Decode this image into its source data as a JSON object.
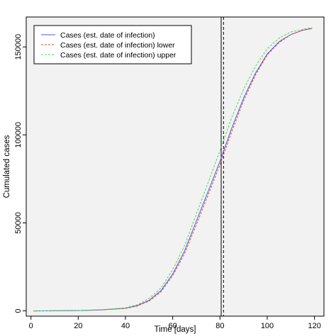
{
  "chart_data": {
    "type": "line",
    "xlabel": "Time [days]",
    "ylabel": "Cumulated cases",
    "xlim": [
      -2,
      124
    ],
    "ylim": [
      -3000,
      167000
    ],
    "x_ticks": [
      0,
      20,
      40,
      60,
      80,
      100,
      120
    ],
    "y_ticks": [
      0,
      50000,
      100000,
      150000
    ],
    "background_color": "#f2f2f2",
    "grid": false,
    "legend_position": "top-left",
    "vertical_lines": [
      {
        "x": 80.5,
        "style": "solid",
        "color": "#000000"
      },
      {
        "x": 81.5,
        "style": "dashed",
        "color": "#000000"
      }
    ],
    "x": [
      1,
      10,
      20,
      30,
      40,
      45,
      50,
      55,
      60,
      65,
      70,
      75,
      80,
      85,
      90,
      95,
      100,
      105,
      110,
      115,
      119
    ],
    "series": [
      {
        "name": "Cases (est. date of infection)",
        "color": "#5555dd",
        "style": "solid",
        "values": [
          0,
          50,
          200,
          600,
          1500,
          3000,
          6000,
          11500,
          21000,
          34000,
          51000,
          68000,
          85000,
          104000,
          121000,
          135000,
          146000,
          153000,
          157000,
          159500,
          160500
        ]
      },
      {
        "name": "Cases (est. date of infection) lower",
        "color": "#dd4444",
        "style": "dashed",
        "values": [
          0,
          50,
          200,
          550,
          1400,
          2800,
          5600,
          10800,
          20000,
          32500,
          49000,
          66000,
          83000,
          102000,
          119500,
          134000,
          145500,
          152500,
          157000,
          159500,
          160500
        ]
      },
      {
        "name": "Cases (est. date of infection) upper",
        "color": "#44dd44",
        "style": "dashed",
        "values": [
          0,
          60,
          220,
          700,
          1700,
          3500,
          7000,
          13000,
          23500,
          37000,
          55000,
          73000,
          91000,
          110000,
          126000,
          139000,
          149000,
          155000,
          158500,
          160000,
          161000
        ]
      }
    ]
  }
}
